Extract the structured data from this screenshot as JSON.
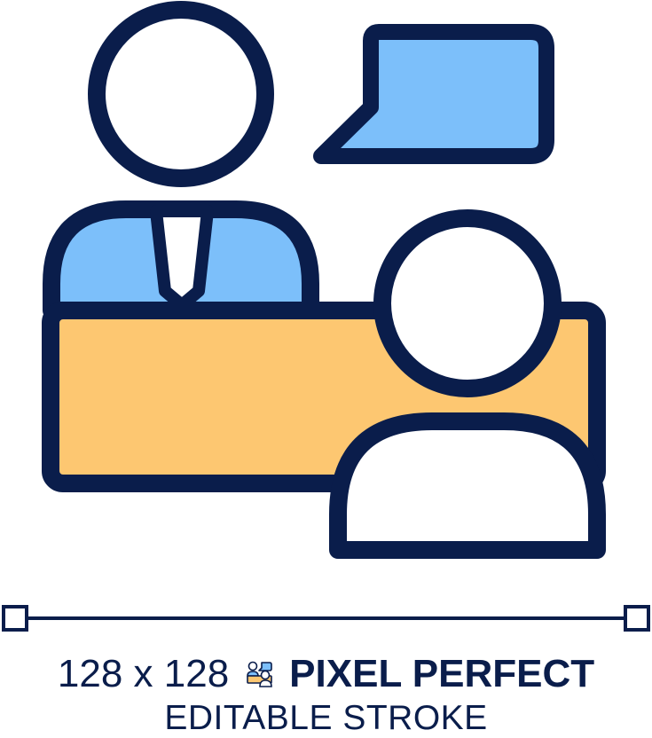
{
  "caption": {
    "size_label": "128 x 128",
    "title": "PIXEL PERFECT",
    "subtitle": "EDITABLE STROKE"
  },
  "colors": {
    "stroke": "#0a1d4b",
    "desk": "#fdc771",
    "shirt": "#7cbffa",
    "bubble": "#7cbffa",
    "white": "#ffffff"
  },
  "icons": {
    "main": "consultation-icon",
    "mini": "consultation-mini-icon"
  }
}
